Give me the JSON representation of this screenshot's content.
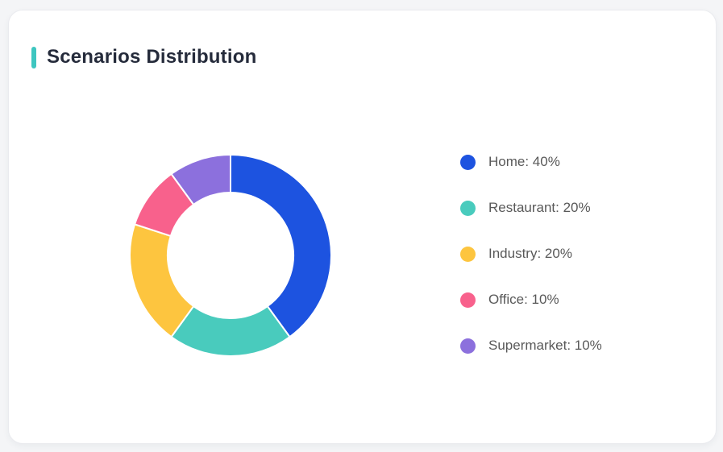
{
  "card": {
    "title": "Scenarios Distribution"
  },
  "theme": {
    "page_bg": "#F4F5F7",
    "card_bg": "#FFFFFF",
    "accent_color": "#3EC6C0",
    "title_color": "#252B3B",
    "legend_text_color": "#595959",
    "segment_gap_color": "#FFFFFF"
  },
  "chart_data": {
    "type": "pie",
    "variant": "donut",
    "title": "Scenarios Distribution",
    "categories": [
      "Home",
      "Restaurant",
      "Industry",
      "Office",
      "Supermarket"
    ],
    "values": [
      40,
      20,
      20,
      10,
      10
    ],
    "unit": "%",
    "colors": [
      "#1D53E0",
      "#49CBBD",
      "#FDC53F",
      "#F8618C",
      "#8C70DD"
    ],
    "start_angle_deg": -90,
    "direction": "clockwise",
    "outer_radius_px": 125,
    "inner_radius_px": 78,
    "legend_position": "right",
    "legend_format": "{label}: {value}%"
  }
}
